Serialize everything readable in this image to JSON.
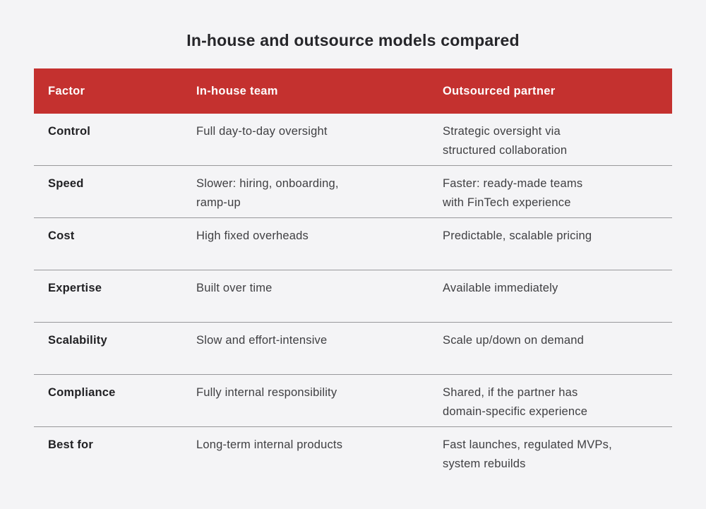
{
  "title": "In-house and outsource models compared",
  "colors": {
    "page_background": "#f4f4f6",
    "header_background": "#c4312f",
    "header_text": "#ffffff",
    "body_text": "#3f3f42",
    "factor_text": "#212124",
    "divider": "#98989b"
  },
  "table": {
    "columns": [
      "Factor",
      "In-house team",
      "Outsourced partner"
    ],
    "rows": [
      {
        "factor": "Control",
        "inhouse": "Full day-to-day oversight",
        "outsourced": "Strategic oversight via\nstructured collaboration"
      },
      {
        "factor": "Speed",
        "inhouse": "Slower: hiring, onboarding,\nramp-up",
        "outsourced": "Faster: ready-made teams\nwith FinTech experience"
      },
      {
        "factor": "Cost",
        "inhouse": "High fixed overheads",
        "outsourced": "Predictable, scalable pricing"
      },
      {
        "factor": "Expertise",
        "inhouse": "Built over time",
        "outsourced": "Available immediately"
      },
      {
        "factor": "Scalability",
        "inhouse": "Slow and effort-intensive",
        "outsourced": "Scale up/down on demand"
      },
      {
        "factor": "Compliance",
        "inhouse": "Fully internal responsibility",
        "outsourced": "Shared, if the partner has\ndomain-specific experience"
      },
      {
        "factor": "Best for",
        "inhouse": "Long-term internal products",
        "outsourced": "Fast launches, regulated MVPs,\nsystem rebuilds"
      }
    ]
  }
}
